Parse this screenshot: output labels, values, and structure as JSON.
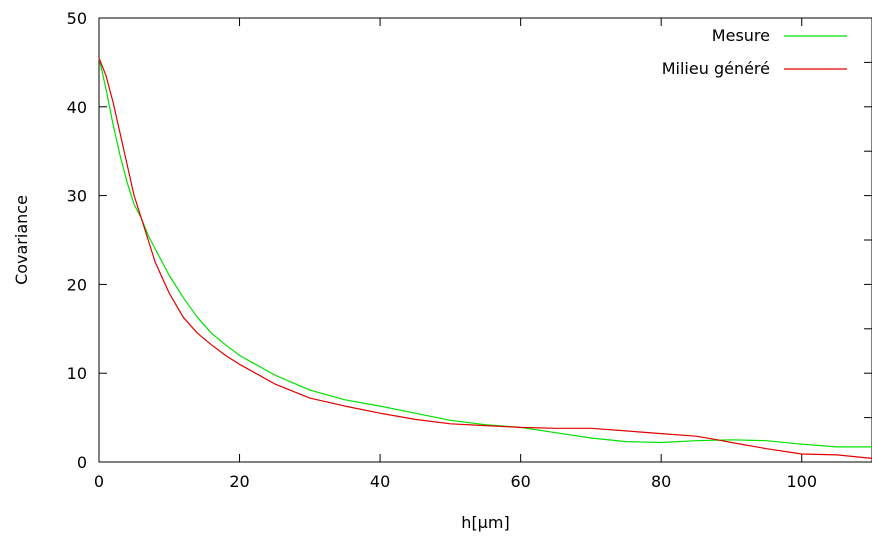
{
  "chart_data": {
    "type": "line",
    "title": "",
    "xlabel": "h[µm]",
    "ylabel": "Covariance",
    "xlim": [
      0,
      110
    ],
    "ylim": [
      0,
      50
    ],
    "xticks": [
      0,
      20,
      40,
      60,
      80,
      100
    ],
    "yticks": [
      0,
      10,
      20,
      30,
      40,
      50
    ],
    "grid": false,
    "legend_position": "top-right",
    "series": [
      {
        "name": "Mesure",
        "color": "#00e000",
        "x": [
          0,
          1,
          2,
          3,
          4,
          5,
          6,
          7,
          8,
          10,
          12,
          14,
          16,
          18,
          20,
          25,
          30,
          35,
          40,
          45,
          50,
          55,
          60,
          65,
          70,
          75,
          80,
          85,
          90,
          95,
          100,
          105,
          110
        ],
        "y": [
          45.5,
          42,
          38,
          34.5,
          31.5,
          29,
          27.5,
          25.5,
          24,
          21,
          18.5,
          16.3,
          14.5,
          13.2,
          12,
          9.8,
          8.1,
          7,
          6.3,
          5.5,
          4.7,
          4.2,
          3.9,
          3.3,
          2.7,
          2.3,
          2.2,
          2.4,
          2.5,
          2.4,
          2,
          1.7,
          1.7
        ]
      },
      {
        "name": "Milieu généré",
        "color": "#e00000",
        "x": [
          0,
          1,
          2,
          3,
          4,
          5,
          6,
          7,
          8,
          10,
          12,
          14,
          16,
          18,
          20,
          25,
          30,
          35,
          40,
          45,
          50,
          55,
          60,
          65,
          70,
          75,
          80,
          85,
          88,
          90,
          95,
          100,
          105,
          110
        ],
        "y": [
          45.5,
          43.5,
          40.5,
          37,
          33.5,
          30,
          27.5,
          25,
          22.5,
          19,
          16.3,
          14.5,
          13.2,
          12,
          11,
          8.8,
          7.2,
          6.3,
          5.5,
          4.8,
          4.3,
          4.1,
          3.9,
          3.8,
          3.8,
          3.5,
          3.2,
          2.9,
          2.5,
          2.2,
          1.5,
          0.9,
          0.8,
          0.4
        ]
      }
    ]
  }
}
